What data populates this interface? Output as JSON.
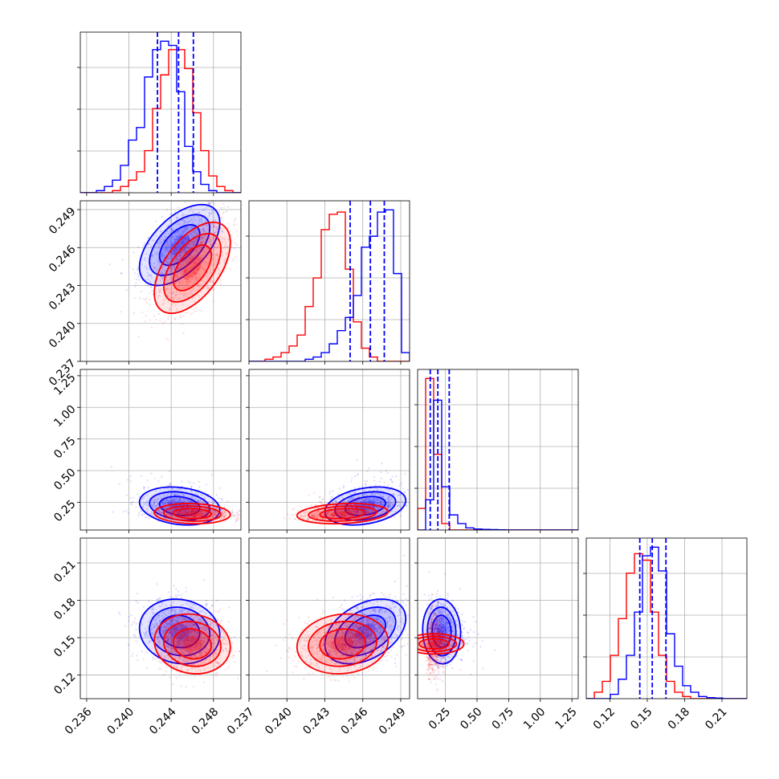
{
  "chart_data": {
    "type": "corner",
    "title": "",
    "n_params": 4,
    "series": [
      {
        "name": "",
        "color": "#0000ff"
      },
      {
        "name": "",
        "color": "#ff0000"
      }
    ],
    "quantile_lines_color": "#0000ff",
    "quantiles": [
      [
        0.2427,
        0.2447,
        0.2461
      ],
      [
        0.245,
        0.2466,
        0.2477
      ],
      [
        0.13,
        0.19,
        0.28
      ],
      [
        0.144,
        0.154,
        0.165
      ]
    ],
    "grid": true,
    "axes": [
      {
        "range": [
          0.2354,
          0.2506
        ],
        "ticks": [
          0.236,
          0.24,
          0.244,
          0.248
        ],
        "tick_labels": [
          "0.236",
          "0.240",
          "0.244",
          "0.248"
        ]
      },
      {
        "range": [
          0.237,
          0.2497
        ],
        "ticks": [
          0.237,
          0.24,
          0.243,
          0.246,
          0.249
        ],
        "tick_labels": [
          "0.237",
          "0.240",
          "0.243",
          "0.246",
          "0.249"
        ]
      },
      {
        "range": [
          0.03,
          1.3
        ],
        "ticks": [
          0.25,
          0.5,
          0.75,
          1.0,
          1.25
        ],
        "tick_labels": [
          "0.25",
          "0.50",
          "0.75",
          "1.00",
          "1.25"
        ]
      },
      {
        "range": [
          0.101,
          0.23
        ],
        "ticks": [
          0.12,
          0.15,
          0.18,
          0.21
        ],
        "tick_labels": [
          "0.12",
          "0.15",
          "0.18",
          "0.21"
        ]
      }
    ],
    "histograms": [
      {
        "param": 0,
        "bins": [
          0.2354,
          0.2507,
          20
        ],
        "blue": [
          0,
          0,
          1,
          3,
          6,
          13,
          25,
          31,
          55,
          68,
          72,
          70,
          48,
          22,
          10,
          4,
          1,
          0,
          0,
          0
        ],
        "red": [
          0,
          0,
          0,
          0,
          1,
          3,
          6,
          10,
          20,
          40,
          56,
          68,
          68,
          59,
          38,
          20,
          8,
          3,
          1,
          0
        ]
      },
      {
        "param": 1,
        "bins": [
          0.237,
          0.2497,
          20
        ],
        "blue": [
          0,
          0,
          0,
          0,
          0,
          0,
          0,
          1,
          2,
          4,
          8,
          14,
          20,
          30,
          52,
          57,
          68,
          69,
          40,
          4
        ],
        "red": [
          0,
          0,
          1,
          2,
          4,
          7,
          12,
          25,
          38,
          60,
          67,
          68,
          42,
          18,
          6,
          2,
          0,
          0,
          0,
          0
        ]
      },
      {
        "param": 2,
        "bins": [
          0.03,
          1.3,
          20
        ],
        "blue": [
          0,
          14,
          60,
          20,
          7,
          3,
          1,
          0.5,
          0.3,
          0.2,
          0.1,
          0,
          0,
          0,
          0,
          0,
          0,
          0,
          0,
          0
        ],
        "red": [
          10,
          70,
          35,
          3,
          0,
          0,
          0,
          0,
          0,
          0,
          0,
          0,
          0,
          0,
          0,
          0,
          0,
          0,
          0,
          0
        ]
      },
      {
        "param": 3,
        "bins": [
          0.101,
          0.23,
          20
        ],
        "blue": [
          0,
          0,
          0,
          2,
          9,
          20,
          40,
          66,
          70,
          59,
          30,
          15,
          6,
          3,
          1,
          0.5,
          0.3,
          0,
          0,
          0
        ],
        "red": [
          0,
          3,
          8,
          20,
          37,
          58,
          67,
          64,
          40,
          20,
          8,
          3,
          1,
          0,
          0,
          0,
          0,
          0,
          0,
          0
        ]
      }
    ],
    "distributions": [
      {
        "name": "",
        "color": "#0000ff",
        "mean": [
          0.2448,
          0.2462,
          0.22,
          0.155
        ],
        "std": [
          0.0019,
          0.0016,
          0.075,
          0.013
        ]
      },
      {
        "name": "",
        "color": "#ff0000",
        "mean": [
          0.246,
          0.2444,
          0.16,
          0.145
        ],
        "std": [
          0.0018,
          0.0018,
          0.04,
          0.012
        ]
      }
    ],
    "correlations": [
      {
        "pair": [
          0,
          1
        ],
        "blue": 0.55,
        "red": 0.55
      },
      {
        "pair": [
          0,
          2
        ],
        "blue": -0.2,
        "red": -0.1
      },
      {
        "pair": [
          1,
          2
        ],
        "blue": 0.3,
        "red": 0.2
      },
      {
        "pair": [
          0,
          3
        ],
        "blue": -0.1,
        "red": -0.1
      },
      {
        "pair": [
          1,
          3
        ],
        "blue": 0.4,
        "red": 0.1
      },
      {
        "pair": [
          2,
          3
        ],
        "blue": -0.05,
        "red": 0.0
      }
    ],
    "contour_levels": [
      0.5,
      1.0,
      1.5,
      2.0
    ]
  }
}
